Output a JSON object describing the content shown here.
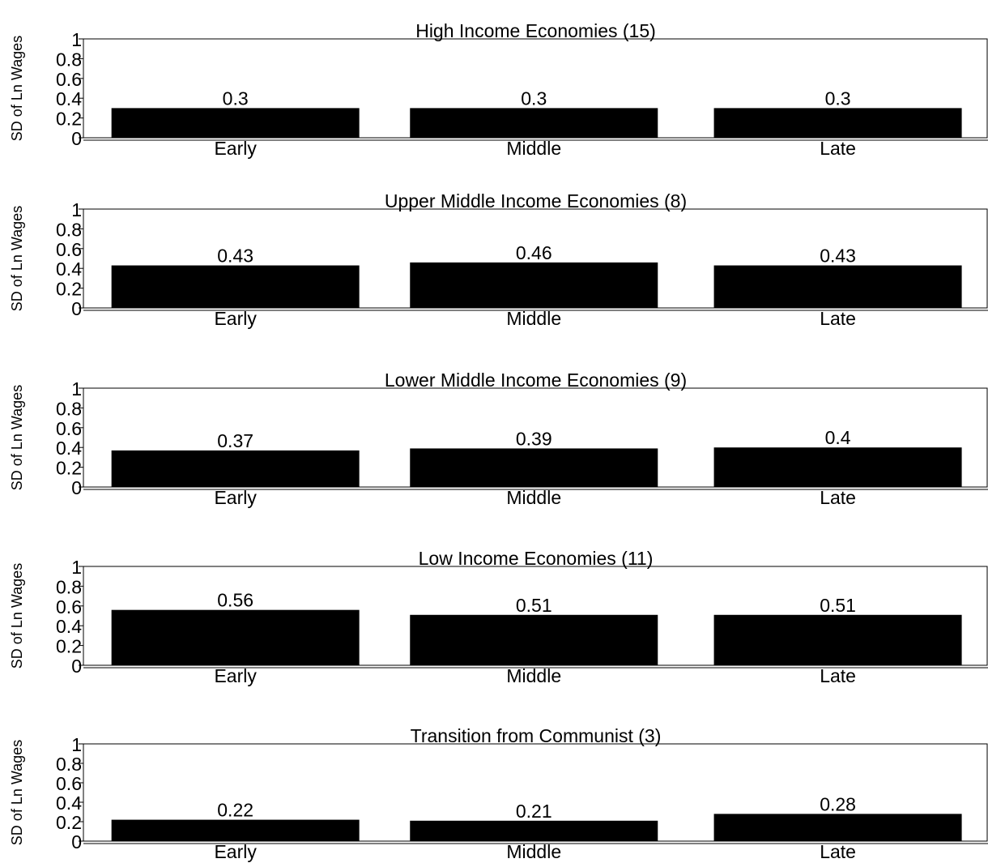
{
  "colors": {
    "bar": "#000000",
    "axis": "#000000",
    "background": "#ffffff"
  },
  "chart_data": [
    {
      "type": "bar",
      "title": "High Income Economies (15)",
      "ylabel": "SD of Ln Wages",
      "xlabel": "",
      "ylim": [
        0,
        1
      ],
      "yticks": [
        "0",
        "0.2",
        "0.4",
        "0.6",
        "0.8",
        "1"
      ],
      "categories": [
        "Early",
        "Middle",
        "Late"
      ],
      "values": [
        0.3,
        0.3,
        0.3
      ],
      "value_labels": [
        "0.3",
        "0.3",
        "0.3"
      ],
      "grid": false
    },
    {
      "type": "bar",
      "title": "Upper Middle Income Economies (8)",
      "ylabel": "SD of Ln Wages",
      "xlabel": "",
      "ylim": [
        0,
        1
      ],
      "yticks": [
        "0",
        "0.2",
        "0.4",
        "0.6",
        "0.8",
        "1"
      ],
      "categories": [
        "Early",
        "Middle",
        "Late"
      ],
      "values": [
        0.43,
        0.46,
        0.43
      ],
      "value_labels": [
        "0.43",
        "0.46",
        "0.43"
      ],
      "grid": false
    },
    {
      "type": "bar",
      "title": "Lower Middle Income Economies (9)",
      "ylabel": "SD of Ln Wages",
      "xlabel": "",
      "ylim": [
        0,
        1
      ],
      "yticks": [
        "0",
        "0.2",
        "0.4",
        "0.6",
        "0.8",
        "1"
      ],
      "categories": [
        "Early",
        "Middle",
        "Late"
      ],
      "values": [
        0.37,
        0.39,
        0.4
      ],
      "value_labels": [
        "0.37",
        "0.39",
        "0.4"
      ],
      "grid": false
    },
    {
      "type": "bar",
      "title": "Low Income Economies (11)",
      "ylabel": "SD of Ln Wages",
      "xlabel": "",
      "ylim": [
        0,
        1
      ],
      "yticks": [
        "0",
        "0.2",
        "0.4",
        "0.6",
        "0.8",
        "1"
      ],
      "categories": [
        "Early",
        "Middle",
        "Late"
      ],
      "values": [
        0.56,
        0.51,
        0.51
      ],
      "value_labels": [
        "0.56",
        "0.51",
        "0.51"
      ],
      "grid": false
    },
    {
      "type": "bar",
      "title": "Transition from Communist (3)",
      "ylabel": "SD of Ln Wages",
      "xlabel": "",
      "ylim": [
        0,
        1
      ],
      "yticks": [
        "0",
        "0.2",
        "0.4",
        "0.6",
        "0.8",
        "1"
      ],
      "categories": [
        "Early",
        "Middle",
        "Late"
      ],
      "values": [
        0.22,
        0.21,
        0.28
      ],
      "value_labels": [
        "0.22",
        "0.21",
        "0.28"
      ],
      "grid": false
    }
  ]
}
